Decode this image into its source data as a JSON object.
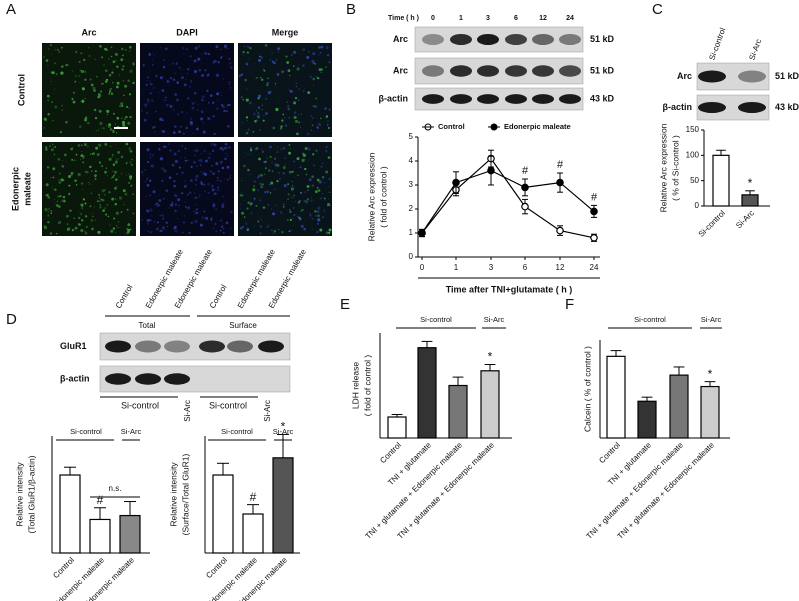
{
  "panel_letters": [
    "A",
    "B",
    "C",
    "D",
    "E",
    "F"
  ],
  "panel_a": {
    "columns": [
      "Arc",
      "DAPI",
      "Merge"
    ],
    "rows": [
      [
        "Control"
      ],
      [
        "Edonerpic",
        "maleate"
      ]
    ]
  },
  "blot_b": {
    "time_label": "Time ( h )",
    "lanes": [
      "0",
      "1",
      "3",
      "6",
      "12",
      "24"
    ],
    "rows": [
      {
        "label": "Arc",
        "size": "51 kD"
      },
      {
        "label": "Arc",
        "size": "51 kD"
      },
      {
        "label": "β-actin",
        "size": "43 kD"
      }
    ]
  },
  "blot_c": {
    "lanes": [
      "Si-control",
      "Si-Arc"
    ],
    "rows": [
      {
        "label": "Arc",
        "size": "51 kD"
      },
      {
        "label": "β-actin",
        "size": "43 kD"
      }
    ]
  },
  "blot_d": {
    "lanes": [
      "Control",
      "Edonerpic maleate",
      "Edonerpic maleate",
      "Control",
      "Edonerpic maleate",
      "Edonerpic maleate"
    ],
    "groups": [
      "Total",
      "Surface"
    ],
    "rows": [
      "GluR1",
      "β-actin"
    ],
    "conditions": [
      "Si-control",
      "Si-Arc",
      "Si-control",
      "Si-Arc"
    ]
  },
  "chart_data": [
    {
      "type": "line",
      "ylabel": [
        "Relative Arc expression",
        "( fold of control )"
      ],
      "xlabel": "Time after TNI+glutamate ( h )",
      "categories": [
        "0",
        "1",
        "3",
        "6",
        "12",
        "24"
      ],
      "ylim": [
        0,
        5
      ],
      "yticks": [
        0,
        1,
        2,
        3,
        4,
        5
      ],
      "series": [
        {
          "name": "Control",
          "color": "#000000",
          "marker_fill": "#ffffff",
          "values": [
            1.0,
            2.8,
            4.1,
            2.1,
            1.1,
            0.8
          ],
          "errors": [
            0.15,
            0.25,
            0.35,
            0.3,
            0.2,
            0.15
          ]
        },
        {
          "name": "Edonerpic maleate",
          "color": "#000000",
          "marker_fill": "#000000",
          "values": [
            1.0,
            3.1,
            3.6,
            2.9,
            3.1,
            1.9
          ],
          "errors": [
            0.15,
            0.45,
            0.6,
            0.35,
            0.4,
            0.25
          ],
          "markers": [
            null,
            null,
            null,
            "#",
            "#",
            "#"
          ]
        }
      ]
    },
    {
      "type": "bar",
      "ylabel": [
        "Relative Arc expression",
        "( % of Si-control )"
      ],
      "categories": [
        "Si-control",
        "Si-Arc"
      ],
      "values": [
        100,
        22
      ],
      "errors": [
        10,
        8
      ],
      "colors": [
        "#ffffff",
        "#555555"
      ],
      "markers": [
        null,
        "*"
      ],
      "ylim": [
        0,
        150
      ],
      "yticks": [
        0,
        50,
        100,
        150
      ]
    },
    {
      "type": "bar",
      "ylabel": [
        "Relative intensity",
        "(Total GluR1/β-actin)"
      ],
      "categories": [
        "Control",
        "Edonerpic maleate",
        "Edonerpic maleate"
      ],
      "values": [
        1.0,
        0.43,
        0.48
      ],
      "errors": [
        0.1,
        0.15,
        0.18
      ],
      "colors": [
        "#ffffff",
        "#ffffff",
        "#888888"
      ],
      "markers": [
        null,
        "#",
        null
      ],
      "ylim": [
        0,
        1.5
      ],
      "groups": [
        "Si-control",
        "Si-Arc"
      ],
      "comparisons": [
        "n.s."
      ]
    },
    {
      "type": "bar",
      "ylabel": [
        "Relative intensity",
        "(Surface/Total GluR1)"
      ],
      "categories": [
        "Control",
        "Edonerpic maleate",
        "Edonerpic maleate"
      ],
      "values": [
        1.0,
        0.5,
        1.22
      ],
      "errors": [
        0.15,
        0.12,
        0.3
      ],
      "colors": [
        "#ffffff",
        "#ffffff",
        "#555555"
      ],
      "markers": [
        null,
        "#",
        "*"
      ],
      "ylim": [
        0,
        1.5
      ],
      "groups": [
        "Si-control",
        "Si-Arc"
      ]
    },
    {
      "type": "bar",
      "ylabel": [
        "LDH release",
        "( fold of control )"
      ],
      "categories": [
        "Control",
        "TNI + glutamate",
        "TNI + glutamate + Edonerpic maleate",
        "TNI + glutamate + Edonerpic maleate"
      ],
      "values": [
        1.0,
        4.3,
        2.5,
        3.2
      ],
      "errors": [
        0.12,
        0.3,
        0.4,
        0.3
      ],
      "colors": [
        "#ffffff",
        "#333333",
        "#777777",
        "#cccccc"
      ],
      "markers": [
        null,
        null,
        null,
        "*"
      ],
      "ylim": [
        0,
        5
      ],
      "groups": [
        "Si-control",
        "Si-Arc"
      ]
    },
    {
      "type": "bar",
      "ylabel": [
        "Calcein ( % of control )"
      ],
      "categories": [
        "Control",
        "TNI + glutamate",
        "TNI + glutamate + Edonerpic maleate",
        "TNI + glutamate + Edonerpic maleate"
      ],
      "values": [
        100,
        45,
        77,
        63
      ],
      "errors": [
        7,
        5,
        10,
        6
      ],
      "colors": [
        "#ffffff",
        "#333333",
        "#777777",
        "#cccccc"
      ],
      "markers": [
        null,
        null,
        null,
        "*"
      ],
      "ylim": [
        0,
        120
      ],
      "groups": [
        "Si-control",
        "Si-Arc"
      ]
    }
  ]
}
